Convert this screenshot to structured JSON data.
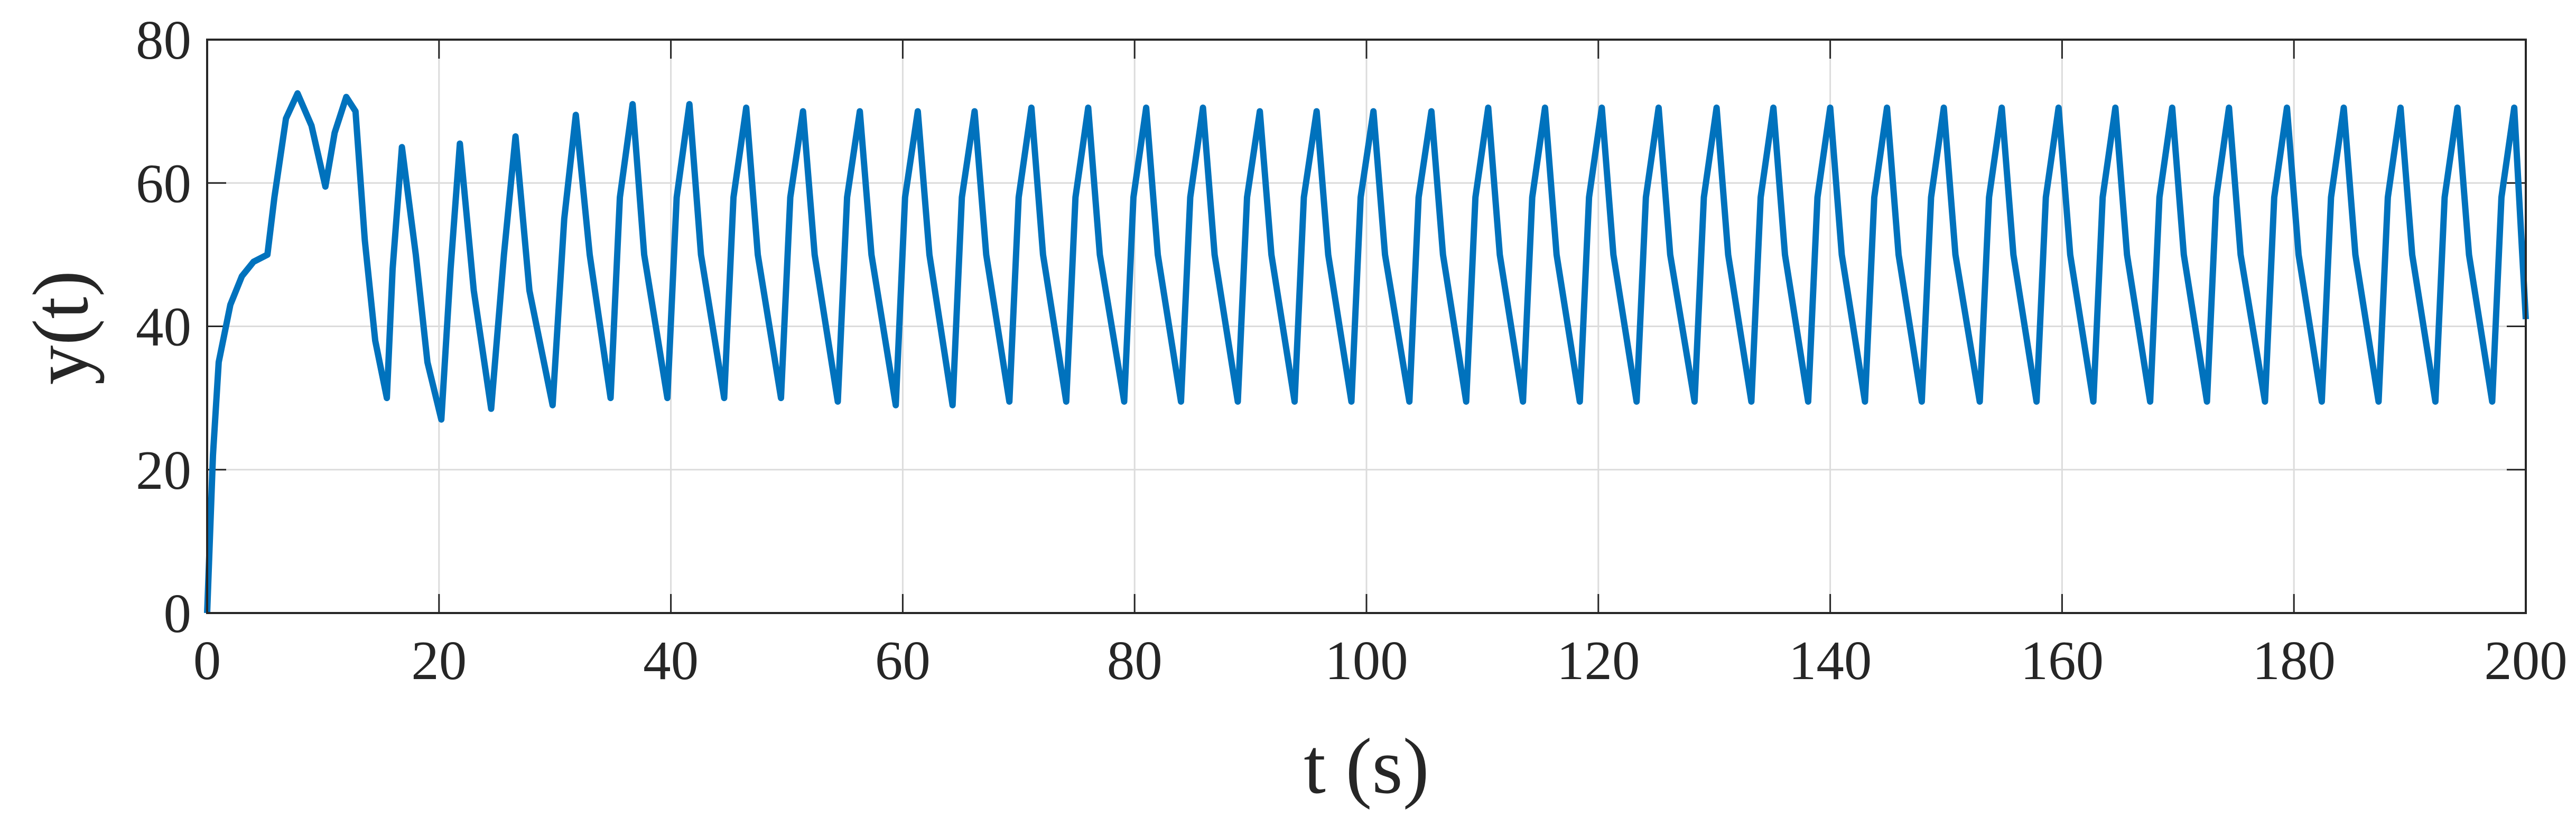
{
  "chart_data": {
    "type": "line",
    "xlabel": "t (s)",
    "ylabel": "y(t)",
    "x": [
      0,
      0.5,
      1,
      2,
      3,
      4,
      5.2,
      5.8,
      6.8,
      7.8,
      9,
      10.2,
      11,
      12,
      12.8,
      13.6,
      14.5,
      15.5,
      16,
      16.8,
      18,
      19,
      20.2,
      21,
      21.8,
      23,
      24.5,
      25.6,
      26.6,
      27.8,
      29.8,
      30.8,
      31.8,
      33,
      34.8,
      35.6,
      36.7,
      37.7,
      39.7,
      40.5,
      41.6,
      42.6,
      44.6,
      45.4,
      46.5,
      47.5,
      49.5,
      50.3,
      51.4,
      52.4,
      54.4,
      55.2,
      56.3,
      57.3,
      59.4,
      60.2,
      61.3,
      62.3,
      64.3,
      65.1,
      66.2,
      67.2,
      69.2,
      70,
      71.1,
      72.1,
      74.1,
      74.9,
      76,
      77,
      79.1,
      79.9,
      81,
      82,
      84,
      84.8,
      85.9,
      86.9,
      88.9,
      89.7,
      90.8,
      91.8,
      93.8,
      94.6,
      95.7,
      96.7,
      98.7,
      99.5,
      100.6,
      101.6,
      103.7,
      104.5,
      105.6,
      106.6,
      108.6,
      109.4,
      110.5,
      111.5,
      113.5,
      114.3,
      115.4,
      116.4,
      118.4,
      119.2,
      120.3,
      121.3,
      123.3,
      124.1,
      125.2,
      126.2,
      128.3,
      129.1,
      130.2,
      131.2,
      133.2,
      134,
      135.1,
      136.1,
      138.1,
      138.9,
      140,
      141,
      143,
      143.8,
      144.9,
      145.9,
      147.9,
      148.7,
      149.8,
      150.8,
      152.9,
      153.7,
      154.8,
      155.8,
      157.8,
      158.6,
      159.7,
      160.7,
      162.7,
      163.5,
      164.6,
      165.6,
      167.6,
      168.4,
      169.5,
      170.5,
      172.5,
      173.3,
      174.4,
      175.4,
      177.5,
      178.3,
      179.4,
      180.4,
      182.4,
      183.2,
      184.3,
      185.3,
      187.3,
      188.1,
      189.2,
      190.2,
      192.2,
      193,
      194.1,
      195.1,
      197.1,
      197.9,
      199,
      200
    ],
    "values": [
      0,
      22,
      35,
      43,
      47,
      49,
      50,
      58,
      69,
      72.5,
      68,
      59.5,
      67,
      72,
      70,
      52,
      38,
      30,
      48,
      65,
      50,
      35,
      27,
      48,
      65.5,
      45,
      28.5,
      50,
      66.5,
      45,
      29,
      55,
      69.5,
      50,
      30,
      58,
      71,
      50,
      30,
      58,
      71,
      50,
      30,
      58,
      70.5,
      50,
      30,
      58,
      70,
      50,
      29.5,
      58,
      70,
      50,
      29,
      58,
      70,
      50,
      29,
      58,
      70,
      50,
      29.5,
      58,
      70.5,
      50,
      29.5,
      58,
      70.5,
      50,
      29.5,
      58,
      70.5,
      50,
      29.5,
      58,
      70.5,
      50,
      29.5,
      58,
      70,
      50,
      29.5,
      58,
      70,
      50,
      29.5,
      58,
      70,
      50,
      29.5,
      58,
      70,
      50,
      29.5,
      58,
      70.5,
      50,
      29.5,
      58,
      70.5,
      50,
      29.5,
      58,
      70.5,
      50,
      29.5,
      58,
      70.5,
      50,
      29.5,
      58,
      70.5,
      50,
      29.5,
      58,
      70.5,
      50,
      29.5,
      58,
      70.5,
      50,
      29.5,
      58,
      70.5,
      50,
      29.5,
      58,
      70.5,
      50,
      29.5,
      58,
      70.5,
      50,
      29.5,
      58,
      70.5,
      50,
      29.5,
      58,
      70.5,
      50,
      29.5,
      58,
      70.5,
      50,
      29.5,
      58,
      70.5,
      50,
      29.5,
      58,
      70.5,
      50,
      29.5,
      58,
      70.5,
      50,
      29.5,
      58,
      70.5,
      50,
      29.5,
      58,
      70.5,
      50,
      29.5,
      58,
      70.5,
      41
    ],
    "color": "#0072bd",
    "xlim": [
      0,
      200
    ],
    "xticks": [
      0,
      20,
      40,
      60,
      80,
      100,
      120,
      140,
      160,
      180,
      200
    ],
    "ylim": [
      0,
      80
    ],
    "yticks": [
      0,
      20,
      40,
      60,
      80
    ],
    "grid": true
  }
}
